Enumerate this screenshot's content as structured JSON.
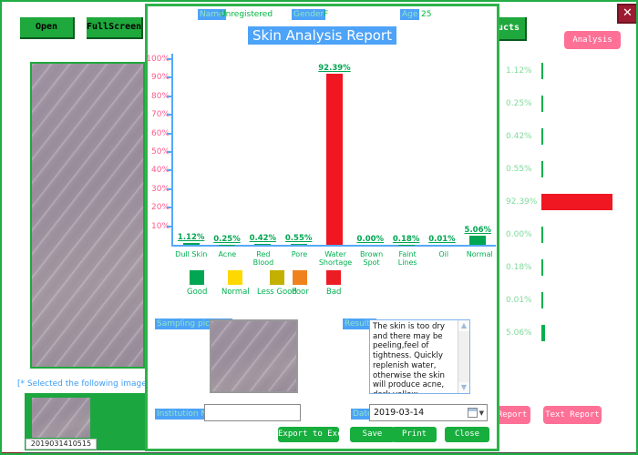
{
  "window": {
    "open_button": "Open",
    "fullscreen_button": "FullScreen",
    "products_button_fragment": "ucts",
    "analysis_button": "Analysis",
    "close_icon": "✕",
    "selected_text": "[* Selected the following image for",
    "thumbnail_filename": "2019031410515",
    "report_button_fragment": "Report",
    "text_report_button": "Text Report",
    "side_metrics": [
      {
        "label": "1.12%",
        "value": 1.12,
        "color": "#00B050"
      },
      {
        "label": "0.25%",
        "value": 0.25,
        "color": "#00B050"
      },
      {
        "label": "0.42%",
        "value": 0.42,
        "color": "#00B050"
      },
      {
        "label": "0.55%",
        "value": 0.55,
        "color": "#00B050"
      },
      {
        "label": "92.39%",
        "value": 92.39,
        "color": "#F01622"
      },
      {
        "label": "0.00%",
        "value": 0.0,
        "color": "#00B050"
      },
      {
        "label": "0.18%",
        "value": 0.18,
        "color": "#00B050"
      },
      {
        "label": "0.01%",
        "value": 0.01,
        "color": "#00B050"
      },
      {
        "label": "5.06%",
        "value": 5.06,
        "color": "#00B050"
      }
    ]
  },
  "dialog": {
    "header": {
      "name_label": "Name",
      "name_value": "Unregistered",
      "gender_label": "Gender",
      "gender_value": "F",
      "age_label": "Age",
      "age_value": "25"
    },
    "title": "Skin Analysis Report",
    "sampling_label": "Sampling pictures",
    "results_label": "Results",
    "results_text": "The skin is too dry and there may be peeling,feel of tightness. Quickly replenish water, otherwise the skin will produce acne, dark yellow, allergies and so on.",
    "institution_label": "Institution Name",
    "institution_value": "",
    "date_label": "Date",
    "date_value": "2019-03-14",
    "export_button": "Export to Excel",
    "save_button": "Save",
    "print_button": "Print",
    "close_button": "Close"
  },
  "chart_data": {
    "type": "bar",
    "title": "Skin Analysis Report",
    "categories": [
      "Dull Skin",
      "Acne",
      "Red Blood",
      "Pore",
      "Water Shortage",
      "Brown Spot",
      "Faint Lines",
      "Oil",
      "Normal"
    ],
    "values": [
      1.12,
      0.25,
      0.42,
      0.55,
      92.39,
      0.0,
      0.18,
      0.01,
      5.06
    ],
    "value_labels": [
      "1.12%",
      "0.25%",
      "0.42%",
      "0.55%",
      "92.39%",
      "0.00%",
      "0.18%",
      "0.01%",
      "5.06%"
    ],
    "bar_colors": [
      "#00A651",
      "#00A651",
      "#00A651",
      "#00A651",
      "#F01622",
      "#00A651",
      "#00A651",
      "#00A651",
      "#00A651"
    ],
    "wrap_category_index": 4,
    "ylim": [
      0,
      100
    ],
    "y_ticks": [
      "100%",
      "90%",
      "80%",
      "70%",
      "60%",
      "50%",
      "40%",
      "30%",
      "20%",
      "10%"
    ],
    "grid": false,
    "legend_position": "bottom",
    "legend": [
      {
        "label": "Good",
        "color": "#00A651"
      },
      {
        "label": "Normal",
        "color": "#FFD800"
      },
      {
        "label": "Less Good",
        "color": "#C3B000"
      },
      {
        "label": "Poor",
        "color": "#F0821E"
      },
      {
        "label": "Bad",
        "color": "#EC1C24"
      }
    ]
  },
  "colors": {
    "window_green": "#1FA83C",
    "dialog_border": "#2DB34A",
    "highlight_blue": "#4DA3F7",
    "pink": "#FF7096",
    "axis_blue": "#55A8F8",
    "ytick_pink": "#FF5C8A"
  }
}
